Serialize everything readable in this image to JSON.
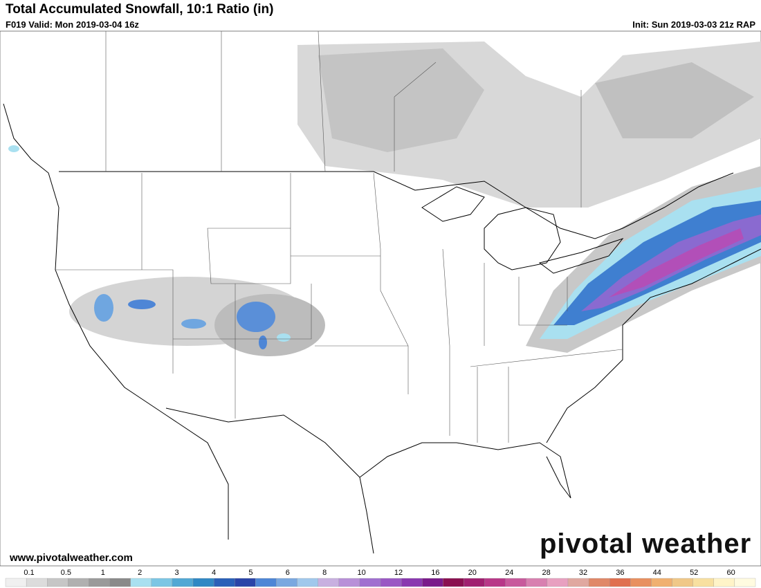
{
  "header": {
    "title": "Total Accumulated Snowfall, 10:1 Ratio (in)",
    "valid": "F019 Valid: Mon 2019-03-04 16z",
    "init": "Init: Sun 2019-03-03 21z RAP"
  },
  "footer": {
    "website": "www.pivotalweather.com",
    "logo": "pivotal weather"
  },
  "legend": {
    "labels": [
      0.1,
      0.5,
      1,
      2,
      3,
      4,
      5,
      6,
      8,
      10,
      12,
      16,
      20,
      24,
      28,
      32,
      36,
      44,
      52,
      60
    ]
  }
}
